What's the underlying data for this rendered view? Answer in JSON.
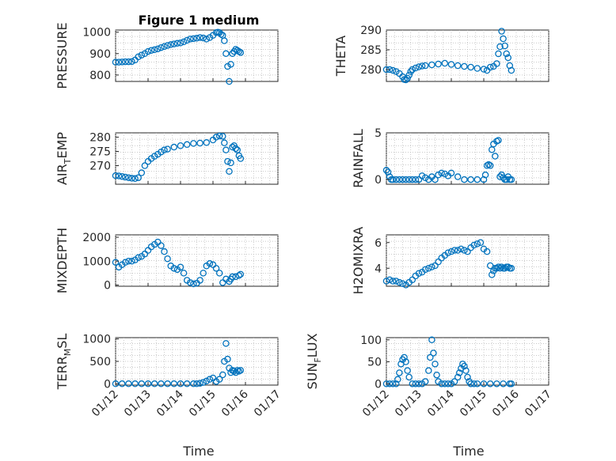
{
  "figure": {
    "title": "Figure 1 medium",
    "xlabel": "Time"
  },
  "colors": {
    "marker": "#0072bd",
    "axes": "#262626",
    "grid": "#b8b8b8"
  },
  "chart_data": [
    {
      "type": "scatter",
      "id": "pressure",
      "ylabel": "PRESSURE",
      "sub": "",
      "xlim": [
        "01/12",
        "01/17"
      ],
      "xticks": [
        "01/12",
        "01/13",
        "01/14",
        "01/15",
        "01/16",
        "01/17"
      ],
      "ylim": [
        770,
        1010
      ],
      "yticks": [
        800,
        900,
        1000
      ],
      "grid": true,
      "series": [
        {
          "x": [
            0,
            0.1,
            0.2,
            0.3,
            0.4,
            0.5,
            0.6,
            0.7,
            0.8,
            0.9,
            1.0,
            1.1,
            1.2,
            1.3,
            1.4,
            1.5,
            1.6,
            1.7,
            1.8,
            1.9,
            2.0,
            2.1,
            2.2,
            2.3,
            2.4,
            2.5,
            2.6,
            2.7,
            2.8,
            2.9,
            3.0,
            3.1,
            3.15,
            3.2,
            3.25,
            3.3,
            3.35,
            3.4,
            3.45,
            3.5,
            3.55,
            3.6,
            3.65,
            3.7,
            3.75,
            3.8,
            3.85
          ],
          "y": [
            860,
            860,
            861,
            862,
            862,
            863,
            870,
            885,
            893,
            900,
            910,
            915,
            918,
            922,
            928,
            933,
            938,
            942,
            945,
            948,
            950,
            955,
            962,
            968,
            970,
            972,
            975,
            973,
            968,
            975,
            985,
            998,
            1000,
            998,
            990,
            985,
            960,
            900,
            840,
            770,
            850,
            900,
            910,
            920,
            915,
            910,
            905
          ]
        }
      ]
    },
    {
      "type": "scatter",
      "id": "theta",
      "ylabel": "THETA",
      "sub": "",
      "xlim": [
        "01/12",
        "01/17"
      ],
      "xticks": [
        "01/12",
        "01/13",
        "01/14",
        "01/15",
        "01/16",
        "01/17"
      ],
      "ylim": [
        277,
        290
      ],
      "yticks": [
        280,
        285,
        290
      ],
      "grid": true,
      "series": [
        {
          "x": [
            0,
            0.1,
            0.2,
            0.3,
            0.4,
            0.5,
            0.55,
            0.6,
            0.65,
            0.7,
            0.75,
            0.8,
            0.9,
            1.0,
            1.1,
            1.2,
            1.4,
            1.6,
            1.8,
            2.0,
            2.2,
            2.4,
            2.6,
            2.8,
            3.0,
            3.1,
            3.2,
            3.3,
            3.4,
            3.45,
            3.5,
            3.55,
            3.6,
            3.65,
            3.7,
            3.75,
            3.8,
            3.85
          ],
          "y": [
            280.0,
            280.0,
            279.8,
            279.5,
            279.0,
            278.2,
            277.5,
            277.4,
            277.8,
            278.6,
            279.5,
            280.0,
            280.4,
            280.7,
            280.9,
            281.0,
            281.2,
            281.4,
            281.6,
            281.3,
            281.0,
            280.8,
            280.6,
            280.3,
            280.1,
            279.8,
            280.6,
            280.8,
            281.5,
            284.0,
            285.8,
            289.7,
            287.8,
            286.0,
            284.0,
            283.0,
            281.0,
            279.8
          ]
        }
      ]
    },
    {
      "type": "scatter",
      "id": "air-temp",
      "ylabel": "AIR",
      "sub": "T",
      "ylabel_tail": "EMP",
      "xlim": [
        "01/12",
        "01/17"
      ],
      "xticks": [
        "01/12",
        "01/13",
        "01/14",
        "01/15",
        "01/16",
        "01/17"
      ],
      "ylim": [
        263.5,
        281.5
      ],
      "yticks": [
        270,
        275,
        280
      ],
      "grid": true,
      "series": [
        {
          "x": [
            0,
            0.1,
            0.2,
            0.3,
            0.4,
            0.5,
            0.6,
            0.7,
            0.8,
            0.9,
            1.0,
            1.1,
            1.2,
            1.3,
            1.4,
            1.5,
            1.6,
            1.8,
            2.0,
            2.2,
            2.4,
            2.6,
            2.8,
            3.0,
            3.1,
            3.2,
            3.3,
            3.35,
            3.4,
            3.45,
            3.5,
            3.55,
            3.6,
            3.65,
            3.7,
            3.75,
            3.8,
            3.85
          ],
          "y": [
            266.5,
            266.4,
            266.2,
            266.0,
            265.8,
            265.6,
            265.5,
            265.8,
            267.5,
            270.0,
            271.5,
            272.5,
            273.3,
            274.0,
            274.8,
            275.5,
            275.8,
            276.5,
            277.0,
            277.4,
            277.8,
            277.9,
            278.1,
            279.0,
            280.0,
            280.4,
            280.3,
            278.0,
            275.5,
            271.5,
            268.0,
            271.0,
            276.5,
            277.0,
            276.0,
            275.5,
            273.5,
            272.5
          ]
        }
      ]
    },
    {
      "type": "scatter",
      "id": "rainfall",
      "ylabel": "RAINFALL",
      "sub": "",
      "xlim": [
        "01/12",
        "01/17"
      ],
      "xticks": [
        "01/12",
        "01/13",
        "01/14",
        "01/15",
        "01/16",
        "01/17"
      ],
      "ylim": [
        -0.5,
        5
      ],
      "yticks": [
        0,
        5
      ],
      "grid": true,
      "series": [
        {
          "x": [
            0,
            0.05,
            0.1,
            0.15,
            0.2,
            0.3,
            0.4,
            0.5,
            0.6,
            0.7,
            0.8,
            0.9,
            1.0,
            1.1,
            1.2,
            1.3,
            1.4,
            1.5,
            1.6,
            1.7,
            1.8,
            1.9,
            2.0,
            2.2,
            2.4,
            2.6,
            2.8,
            3.0,
            3.05,
            3.1,
            3.15,
            3.2,
            3.25,
            3.3,
            3.35,
            3.4,
            3.45,
            3.5,
            3.55,
            3.6,
            3.65,
            3.7,
            3.75,
            3.8,
            3.85
          ],
          "y": [
            1.0,
            0.8,
            0.3,
            0,
            0,
            0,
            0,
            0,
            0,
            0,
            0,
            0,
            0,
            0.4,
            0.2,
            0,
            0.3,
            0,
            0.5,
            0.7,
            0.6,
            0.4,
            0.7,
            0.3,
            0,
            0,
            0,
            0,
            0.5,
            1.5,
            1.6,
            1.5,
            3.2,
            3.8,
            2.5,
            4.1,
            4.2,
            0.3,
            0.5,
            0.2,
            0,
            0,
            0.3,
            0,
            0
          ]
        }
      ]
    },
    {
      "type": "scatter",
      "id": "mixdepth",
      "ylabel": "MIXDEPTH",
      "sub": "",
      "xlim": [
        "01/12",
        "01/17"
      ],
      "xticks": [
        "01/12",
        "01/13",
        "01/14",
        "01/15",
        "01/16",
        "01/17"
      ],
      "ylim": [
        -50,
        2100
      ],
      "yticks": [
        0,
        1000,
        2000
      ],
      "grid": true,
      "series": [
        {
          "x": [
            0,
            0.1,
            0.2,
            0.3,
            0.4,
            0.5,
            0.6,
            0.7,
            0.8,
            0.9,
            1.0,
            1.1,
            1.2,
            1.3,
            1.4,
            1.5,
            1.6,
            1.7,
            1.8,
            1.9,
            2.0,
            2.1,
            2.2,
            2.3,
            2.4,
            2.5,
            2.6,
            2.7,
            2.8,
            2.9,
            3.0,
            3.1,
            3.2,
            3.3,
            3.4,
            3.5,
            3.55,
            3.6,
            3.7,
            3.8,
            3.85
          ],
          "y": [
            950,
            750,
            850,
            950,
            1000,
            1000,
            1050,
            1150,
            1200,
            1300,
            1450,
            1600,
            1700,
            1800,
            1650,
            1400,
            1100,
            800,
            700,
            650,
            750,
            500,
            200,
            100,
            50,
            80,
            200,
            500,
            800,
            900,
            850,
            700,
            500,
            100,
            250,
            150,
            250,
            350,
            350,
            400,
            450
          ]
        }
      ]
    },
    {
      "type": "scatter",
      "id": "h2omixra",
      "ylabel": "H2OMIXRA",
      "sub": "",
      "xlim": [
        "01/12",
        "01/17"
      ],
      "xticks": [
        "01/12",
        "01/13",
        "01/14",
        "01/15",
        "01/16",
        "01/17"
      ],
      "ylim": [
        2.6,
        6.6
      ],
      "yticks": [
        4,
        6
      ],
      "grid": true,
      "series": [
        {
          "x": [
            0,
            0.1,
            0.2,
            0.3,
            0.4,
            0.5,
            0.6,
            0.7,
            0.8,
            0.9,
            1.0,
            1.1,
            1.2,
            1.3,
            1.4,
            1.5,
            1.6,
            1.7,
            1.8,
            1.9,
            2.0,
            2.1,
            2.2,
            2.3,
            2.4,
            2.5,
            2.6,
            2.7,
            2.8,
            2.9,
            3.0,
            3.1,
            3.2,
            3.25,
            3.3,
            3.35,
            3.4,
            3.45,
            3.5,
            3.55,
            3.6,
            3.65,
            3.7,
            3.75,
            3.8,
            3.85
          ],
          "y": [
            3.0,
            3.1,
            3.0,
            3.0,
            2.9,
            2.8,
            2.7,
            2.9,
            3.1,
            3.4,
            3.6,
            3.7,
            3.9,
            4.0,
            4.1,
            4.2,
            4.5,
            4.8,
            5.0,
            5.2,
            5.3,
            5.4,
            5.4,
            5.5,
            5.4,
            5.3,
            5.6,
            5.8,
            5.9,
            6.0,
            5.5,
            5.3,
            4.2,
            3.5,
            3.8,
            4.0,
            4.0,
            4.1,
            4.0,
            4.1,
            4.0,
            4.0,
            4.1,
            4.1,
            4.0,
            4.0
          ]
        }
      ]
    },
    {
      "type": "scatter",
      "id": "terr-msl",
      "ylabel": "TERR",
      "sub": "M",
      "ylabel_tail": "SL",
      "xlim": [
        "01/12",
        "01/17"
      ],
      "xticks": [
        "01/12",
        "01/13",
        "01/14",
        "01/15",
        "01/16",
        "01/17"
      ],
      "ylim": [
        -30,
        1030
      ],
      "yticks": [
        0,
        500,
        1000
      ],
      "grid": true,
      "series": [
        {
          "x": [
            0,
            0.2,
            0.4,
            0.6,
            0.8,
            1.0,
            1.2,
            1.4,
            1.6,
            1.8,
            2.0,
            2.2,
            2.4,
            2.5,
            2.6,
            2.7,
            2.8,
            2.9,
            3.0,
            3.1,
            3.2,
            3.3,
            3.35,
            3.4,
            3.45,
            3.5,
            3.55,
            3.6,
            3.65,
            3.7,
            3.75,
            3.8,
            3.85
          ],
          "y": [
            0,
            0,
            0,
            0,
            0,
            0,
            0,
            0,
            0,
            0,
            0,
            0,
            0,
            0,
            10,
            30,
            60,
            100,
            130,
            50,
            100,
            200,
            500,
            900,
            550,
            350,
            250,
            300,
            280,
            250,
            300,
            280,
            300
          ]
        }
      ]
    },
    {
      "type": "scatter",
      "id": "sun-flux",
      "ylabel": "SUN",
      "sub": "F",
      "ylabel_tail": "LUX",
      "xlim": [
        "01/12",
        "01/17"
      ],
      "xticks": [
        "01/12",
        "01/13",
        "01/14",
        "01/15",
        "01/16",
        "01/17"
      ],
      "ylim": [
        -3,
        105
      ],
      "yticks": [
        0,
        50,
        100
      ],
      "grid": true,
      "series": [
        {
          "x": [
            0,
            0.1,
            0.2,
            0.3,
            0.35,
            0.4,
            0.45,
            0.5,
            0.55,
            0.6,
            0.65,
            0.7,
            0.8,
            0.9,
            1.0,
            1.1,
            1.2,
            1.3,
            1.35,
            1.4,
            1.45,
            1.5,
            1.55,
            1.6,
            1.7,
            1.8,
            1.9,
            2.0,
            2.1,
            2.2,
            2.25,
            2.3,
            2.35,
            2.4,
            2.45,
            2.5,
            2.55,
            2.6,
            2.7,
            2.8,
            3.0,
            3.2,
            3.4,
            3.6,
            3.8,
            3.85
          ],
          "y": [
            0,
            0,
            0,
            0,
            10,
            25,
            45,
            55,
            60,
            50,
            30,
            15,
            0,
            0,
            0,
            0,
            5,
            30,
            60,
            100,
            70,
            45,
            20,
            5,
            0,
            0,
            0,
            0,
            5,
            15,
            25,
            35,
            45,
            40,
            30,
            15,
            5,
            0,
            0,
            0,
            0,
            0,
            0,
            0,
            0,
            0
          ]
        }
      ]
    }
  ]
}
